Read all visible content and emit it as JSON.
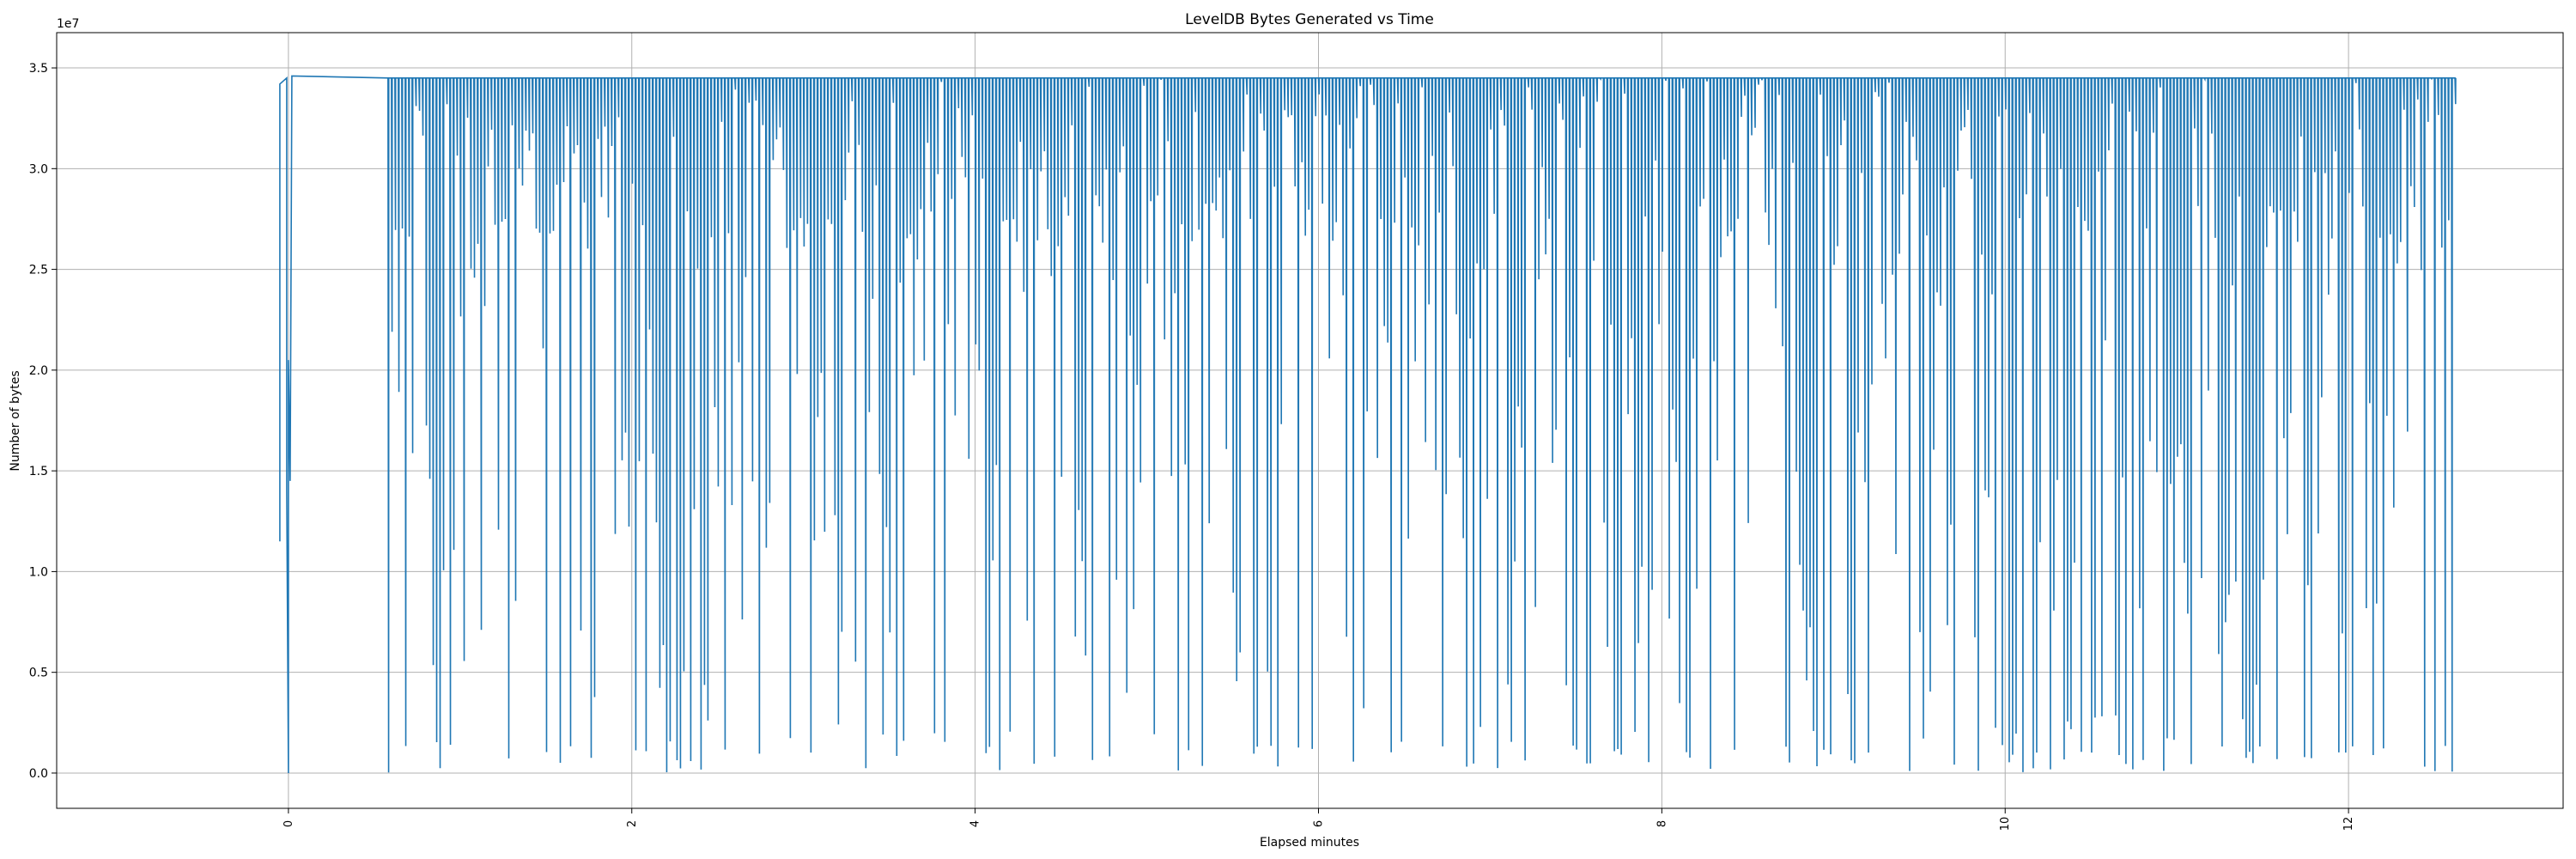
{
  "chart_data": {
    "type": "line",
    "title": "LevelDB Bytes Generated vs Time",
    "xlabel": "Elapsed minutes",
    "ylabel": "Number of bytes",
    "y_offset_label": "1e7",
    "xlim": [
      -1.35,
      13.25
    ],
    "ylim": [
      -1750000,
      36750000
    ],
    "x_ticks": [
      0,
      2,
      4,
      6,
      8,
      10,
      12
    ],
    "x_tick_labels": [
      "0",
      "2",
      "4",
      "6",
      "8",
      "10",
      "12"
    ],
    "y_ticks": [
      0,
      5000000,
      10000000,
      15000000,
      20000000,
      25000000,
      30000000,
      35000000
    ],
    "y_tick_labels": [
      "0.0",
      "0.5",
      "1.0",
      "1.5",
      "2.0",
      "2.5",
      "3.0",
      "3.5"
    ],
    "grid": true,
    "line_color": "#1f77b4",
    "estimated_signal": {
      "x_start": 0.58,
      "x_end": 12.62,
      "step": 0.02,
      "high_value": 34500000,
      "description_note": ""
    },
    "series": [
      {
        "values_x": [
          -0.05,
          -0.05,
          -0.01,
          -0.01,
          0.0,
          0.0,
          0.01,
          0.02,
          0.02
        ],
        "values_y": [
          11500000,
          34200000,
          34500000,
          14000000,
          0,
          20500000,
          14500000,
          34600000,
          34600000
        ]
      }
    ]
  }
}
